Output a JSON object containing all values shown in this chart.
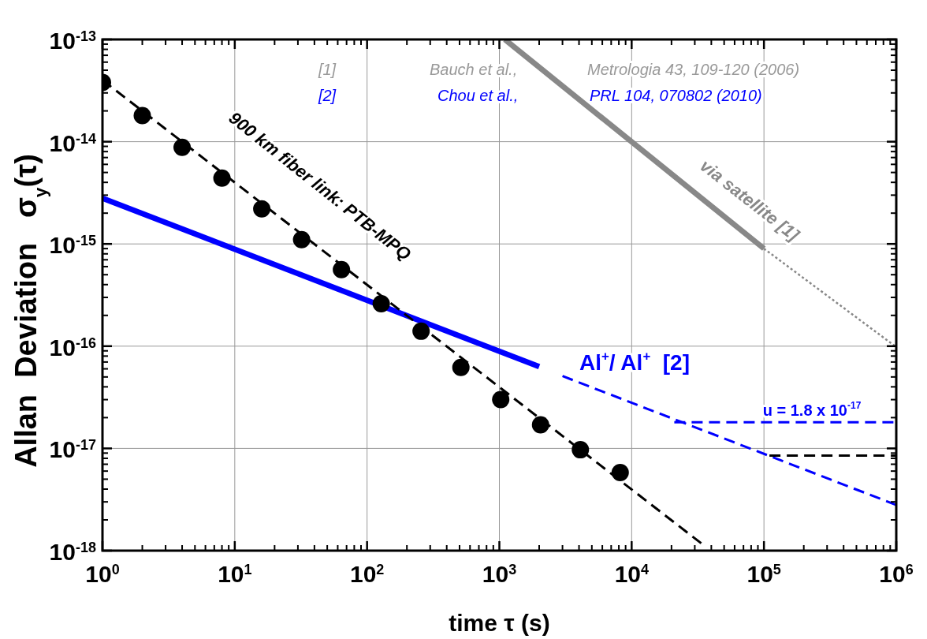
{
  "chart_data": {
    "type": "line",
    "xlabel": "time τ (s)",
    "ylabel": "Allan  Deviation   σ$_{y}$(τ)",
    "log": "xy",
    "grid": true,
    "xlim": [
      1,
      1000000
    ],
    "ylim": [
      1e-18,
      1e-13
    ],
    "xticks": [
      {
        "value": 1,
        "label": "10$^{0}$"
      },
      {
        "value": 10,
        "label": "10$^{1}$"
      },
      {
        "value": 100,
        "label": "10$^{2}$"
      },
      {
        "value": 1000,
        "label": "10$^{3}$"
      },
      {
        "value": 10000,
        "label": "10$^{4}$"
      },
      {
        "value": 100000,
        "label": "10$^{5}$"
      },
      {
        "value": 1000000,
        "label": "10$^{6}$"
      }
    ],
    "yticks": [
      {
        "value": 1e-18,
        "label": "10$^{-18}$"
      },
      {
        "value": 1e-17,
        "label": "10$^{-17}$"
      },
      {
        "value": 1e-16,
        "label": "10$^{-16}$"
      },
      {
        "value": 1e-15,
        "label": "10$^{-15}$"
      },
      {
        "value": 1e-14,
        "label": "10$^{-14}$"
      },
      {
        "value": 1e-13,
        "label": "10$^{-13}$"
      }
    ],
    "series": [
      {
        "color": "#888888",
        "line_style": "solid",
        "x": [
          1100,
          100000
        ],
        "values": [
          1e-13,
          9e-16
        ]
      },
      {
        "type": "line",
        "color": "#888888",
        "line_style": "dotted",
        "x": [
          100000,
          1000000
        ],
        "values": [
          9e-16,
          9.8e-17
        ]
      },
      {
        "type": "line",
        "color": "#0000ff",
        "line_style": "solid",
        "x": [
          1,
          2000
        ],
        "values": [
          2.8e-15,
          6.3e-17
        ]
      },
      {
        "type": "line",
        "color": "#0000ff",
        "line_style": "dashed",
        "x": [
          3000,
          1000000
        ],
        "values": [
          5.1e-17,
          2.8e-18
        ]
      },
      {
        "type": "line",
        "color": "#0000ff",
        "line_style": "dashed",
        "x": [
          21000,
          1000000
        ],
        "values": [
          1.8e-17,
          1.8e-17
        ]
      },
      {
        "type": "line",
        "color": "#000000",
        "line_style": "dashed",
        "x": [
          110000,
          1000000
        ],
        "values": [
          8.5e-18,
          8.5e-18
        ]
      },
      {
        "type": "line",
        "color": "#000000",
        "line_style": "dashed",
        "x": [
          1,
          36000
        ],
        "values": [
          4e-14,
          1.1e-18
        ]
      },
      {
        "type": "scatter",
        "color": "#000000",
        "marker": "circle",
        "x": [
          1,
          2,
          4,
          8,
          16,
          32,
          64,
          128,
          256,
          512,
          1024,
          2048,
          4096,
          8192
        ],
        "values": [
          3.8e-14,
          1.8e-14,
          8.8e-15,
          4.4e-15,
          2.2e-15,
          1.1e-15,
          5.6e-16,
          2.6e-16,
          1.4e-16,
          6.2e-17,
          3e-17,
          1.7e-17,
          9.7e-18,
          5.8e-18
        ]
      }
    ],
    "annotations": [
      "[1]",
      "Bauch et al.,",
      "Metrologia 43, 109-120 (2006)",
      "[2]",
      "Chou et al.,",
      "PRL 104, 070802 (2010)",
      "900 km fiber link: PTB-MPQ",
      "via satellite [1]",
      "Al$^{+}$/ Al$^{+}$  [2]",
      "u = 1.8 x 10$^{-17}$"
    ]
  }
}
